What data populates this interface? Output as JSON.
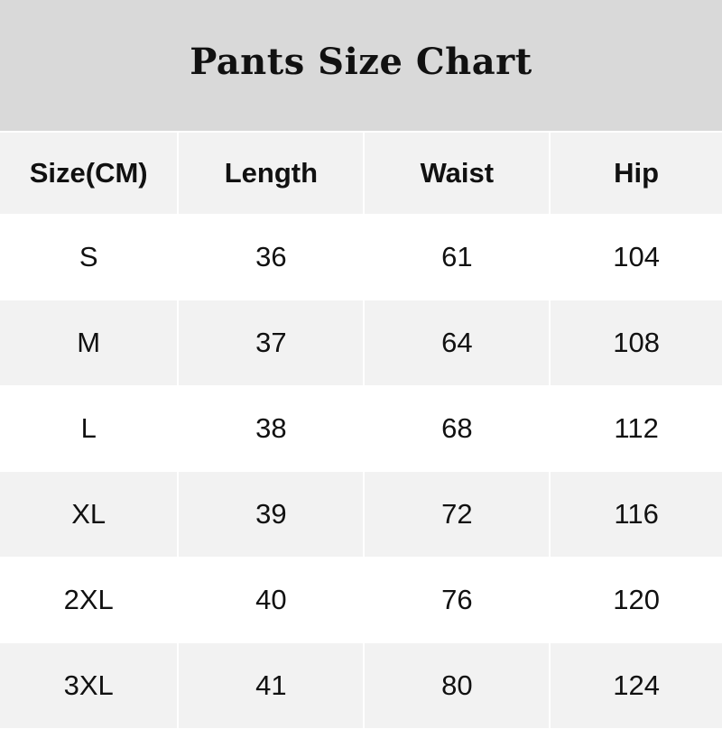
{
  "title": "Pants Size Chart",
  "headers": [
    "Size(CM)",
    "Length",
    "Waist",
    "Hip"
  ],
  "rows": [
    [
      "S",
      "36",
      "61",
      "104"
    ],
    [
      "M",
      "37",
      "64",
      "108"
    ],
    [
      "L",
      "38",
      "68",
      "112"
    ],
    [
      "XL",
      "39",
      "72",
      "116"
    ],
    [
      "2XL",
      "40",
      "76",
      "120"
    ],
    [
      "3XL",
      "41",
      "80",
      "124"
    ]
  ],
  "colors": {
    "title_bg": "#d9d9d9",
    "alt_row": "#f2f2f2",
    "row": "#ffffff"
  }
}
